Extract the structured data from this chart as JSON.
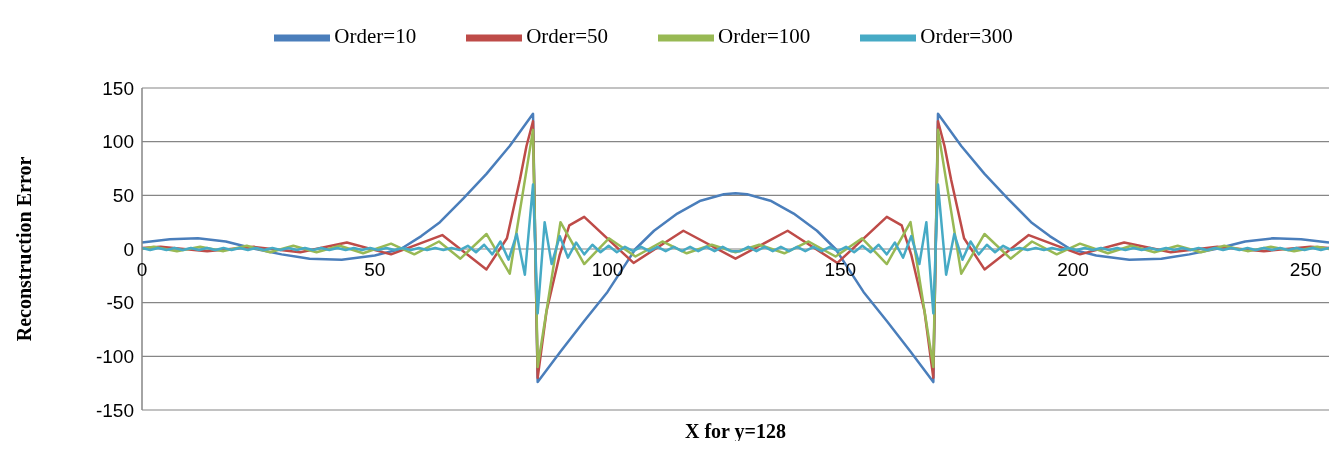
{
  "chart_data": {
    "type": "line",
    "xlabel": "X for y=128",
    "ylabel": "Reconstruction Error",
    "xlim": [
      0,
      255
    ],
    "xticks": [
      0,
      50,
      100,
      150,
      200,
      250
    ],
    "ylim": [
      -150,
      150
    ],
    "yticks": [
      -150,
      -100,
      -50,
      0,
      50,
      100,
      150
    ],
    "grid": "y",
    "legend": "top",
    "marker": "none",
    "line_style": "solid",
    "series": [
      {
        "name": "Order=10",
        "color": "#4a7ebb",
        "x": [
          0,
          6,
          12,
          18,
          24.4,
          30,
          36,
          42.9,
          50,
          55.6,
          60,
          64,
          69,
          74,
          79,
          84,
          85,
          90,
          95,
          100,
          106,
          110,
          115,
          120,
          125,
          127.5,
          130,
          135,
          140,
          145,
          149,
          155,
          160,
          165,
          170,
          171,
          176,
          181,
          186,
          191,
          195,
          199.4,
          205,
          212.1,
          219,
          225,
          230.6,
          237,
          243,
          249,
          255
        ],
        "values": [
          6,
          9,
          10,
          7,
          0,
          -5,
          -9,
          -10,
          -6,
          0,
          12,
          25,
          47,
          70,
          96,
          126,
          -124,
          -95,
          -67,
          -40,
          0,
          17,
          33,
          45,
          51,
          52,
          51,
          45,
          33,
          17,
          0,
          -40,
          -67,
          -95,
          -124,
          126,
          96,
          70,
          47,
          25,
          12,
          0,
          -6,
          -10,
          -9,
          -5,
          0,
          7,
          10,
          9,
          6
        ]
      },
      {
        "name": "Order=50",
        "color": "#be4b48",
        "x": [
          0,
          4,
          14,
          24,
          34,
          44,
          53.5,
          64.5,
          74,
          78.4,
          81.2,
          82.6,
          84,
          85,
          86.9,
          89.7,
          91.8,
          95,
          105.6,
          116.3,
          127.5,
          138.7,
          149.4,
          160,
          163.2,
          165.3,
          168.1,
          170,
          171,
          172.4,
          173.8,
          176.6,
          181,
          190.5,
          201.5,
          211,
          221,
          231,
          241,
          251,
          255
        ],
        "values": [
          1,
          2,
          -2,
          2,
          -3,
          6,
          -5,
          13,
          -19,
          10,
          65,
          96,
          119,
          -120,
          -58,
          -6,
          22,
          30,
          -13,
          17,
          -9,
          17,
          -13,
          30,
          22,
          -6,
          -58,
          -120,
          119,
          96,
          65,
          10,
          -19,
          13,
          -5,
          6,
          -3,
          2,
          -2,
          2,
          1
        ]
      },
      {
        "name": "Order=100",
        "color": "#98b954",
        "x": [
          0,
          2.5,
          7.5,
          12.5,
          17.5,
          22.5,
          27.5,
          32.5,
          37.5,
          42.5,
          47.5,
          53.5,
          58.5,
          63.8,
          68.4,
          74,
          79,
          84,
          85,
          89.9,
          95,
          100.3,
          106,
          111.8,
          117,
          122.4,
          127.5,
          132.6,
          138,
          143.2,
          149,
          154.7,
          160,
          165.1,
          170,
          171,
          176,
          181,
          186.6,
          191.2,
          196.5,
          201.5,
          207.5,
          212.5,
          217.5,
          222.5,
          227.5,
          232.5,
          237.5,
          242.5,
          247.5,
          252.5,
          255
        ],
        "values": [
          0,
          2,
          -2,
          2,
          -2,
          3,
          -3,
          3,
          -3,
          3,
          -4,
          5,
          -5,
          7,
          -9,
          14,
          -23,
          111,
          -110,
          25,
          -14,
          10,
          -7,
          7,
          -4,
          4,
          -3,
          4,
          -4,
          7,
          -7,
          10,
          -14,
          25,
          -110,
          111,
          -23,
          14,
          -9,
          7,
          -5,
          5,
          -4,
          3,
          -3,
          3,
          -3,
          3,
          -2,
          2,
          -2,
          2,
          0
        ]
      },
      {
        "name": "Order=300",
        "color": "#46aac5",
        "x": [
          0,
          1.75,
          3.5,
          5.25,
          7,
          8.75,
          10.5,
          12.25,
          14,
          15.75,
          17.5,
          19.25,
          21,
          22.75,
          24.5,
          26.25,
          28,
          29.75,
          31.5,
          33.25,
          35,
          36.75,
          38.5,
          40.25,
          42,
          43.75,
          45.5,
          47.25,
          49,
          50.75,
          52.5,
          54.25,
          56,
          57.75,
          59.5,
          61.25,
          63,
          64.75,
          66.5,
          68.25,
          70,
          71.75,
          73.5,
          75.25,
          77,
          78.75,
          80.5,
          82.25,
          84,
          85,
          86.5,
          88,
          89.75,
          91.5,
          93.25,
          95,
          96.75,
          98.5,
          100.25,
          102,
          103.75,
          105.5,
          107.25,
          109,
          110.75,
          112.5,
          114.25,
          116,
          117.75,
          119.5,
          121.25,
          123,
          124.75,
          126.5,
          128.5,
          130.25,
          132,
          133.75,
          135.5,
          137.25,
          139,
          140.75,
          142.5,
          144.25,
          146,
          147.75,
          149.5,
          151.25,
          153,
          154.75,
          156.5,
          158.25,
          160,
          161.75,
          163.5,
          165.25,
          167,
          168.5,
          170,
          171,
          172.75,
          174.5,
          176.25,
          178,
          179.75,
          181.5,
          183.25,
          185,
          186.75,
          188.5,
          190.25,
          192,
          193.75,
          195.5,
          197.25,
          199,
          200.75,
          202.5,
          204.25,
          206,
          207.75,
          209.5,
          211.25,
          213,
          214.75,
          216.5,
          218.25,
          220,
          221.75,
          223.5,
          225.25,
          227,
          228.75,
          230.5,
          232.25,
          234,
          235.75,
          237.5,
          239.25,
          241,
          242.75,
          244.5,
          246.25,
          248,
          249.75,
          251.5,
          253.25,
          255
        ],
        "values": [
          1,
          -1,
          1,
          -1,
          1,
          -1,
          1,
          -1,
          1,
          -1,
          1,
          -1,
          1,
          -1,
          1,
          -1,
          1,
          -1,
          1,
          -1,
          1,
          -1,
          1,
          -1,
          1,
          -1,
          1,
          -1,
          1,
          -1,
          1,
          -1,
          1,
          -1,
          1,
          -1,
          1,
          -1,
          1,
          -1,
          3,
          -3,
          4,
          -5,
          7,
          -10,
          14,
          -24,
          60,
          -60,
          25,
          -14,
          12,
          -8,
          6,
          -5,
          4,
          -3,
          3,
          -3,
          2,
          -2,
          2,
          -2,
          2,
          -2,
          2,
          -2,
          2,
          -2,
          2,
          -2,
          2,
          -2,
          -2,
          2,
          -2,
          2,
          -2,
          2,
          -2,
          2,
          -2,
          2,
          -2,
          2,
          -2,
          2,
          -3,
          3,
          -3,
          4,
          -5,
          6,
          -8,
          12,
          -14,
          25,
          -60,
          60,
          -24,
          14,
          -10,
          7,
          -5,
          4,
          -3,
          3,
          -1,
          1,
          -1,
          1,
          -1,
          1,
          -1,
          1,
          -1,
          1,
          -1,
          1,
          -1,
          1,
          -1,
          1,
          -1,
          1,
          -1,
          1,
          -1,
          1,
          -1,
          1,
          -1,
          1,
          -1,
          1,
          -1,
          1,
          -1,
          1,
          -1,
          1,
          -1,
          1,
          -1,
          1,
          -1,
          1
        ]
      }
    ]
  }
}
